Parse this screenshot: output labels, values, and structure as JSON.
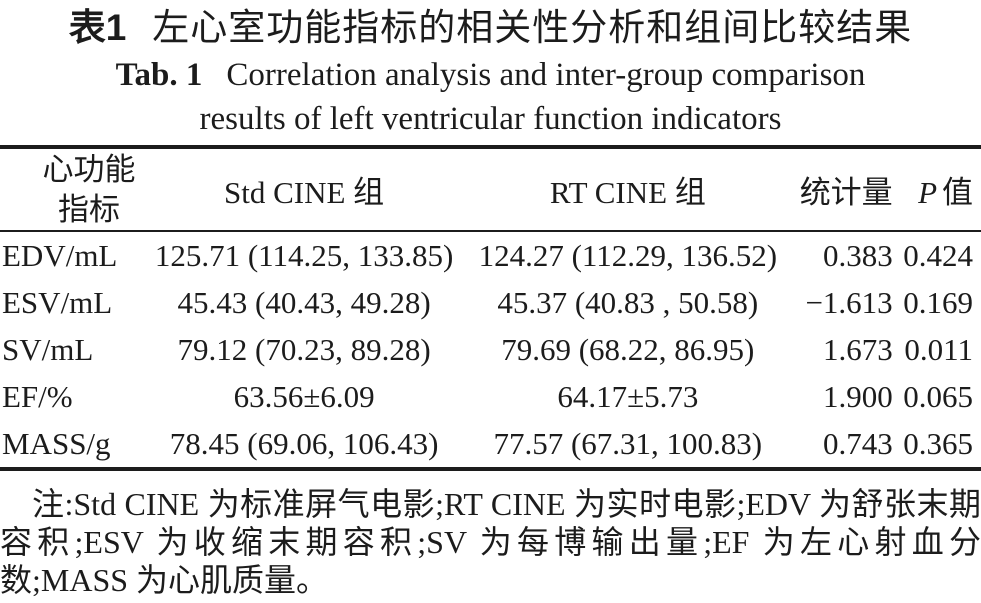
{
  "title": {
    "zh_label": "表1",
    "zh_text": "左心室功能指标的相关性分析和组间比较结果",
    "en_label": "Tab. 1",
    "en_line1": "Correlation analysis and inter-group comparison",
    "en_line2": "results of left ventricular function indicators"
  },
  "table": {
    "headers": {
      "indicator_line1": "心功能",
      "indicator_line2": "指标",
      "std_cine": "Std CINE 组",
      "rt_cine": "RT CINE 组",
      "statistic": "统计量",
      "p_symbol": "P",
      "p_suffix": "值"
    },
    "rows": [
      {
        "indicator": "EDV/mL",
        "std_cine": "125.71 (114.25, 133.85)",
        "rt_cine": "124.27 (112.29, 136.52)",
        "statistic": "0.383",
        "p_value": "0.424"
      },
      {
        "indicator": "ESV/mL",
        "std_cine": "45.43 (40.43, 49.28)",
        "rt_cine": "45.37 (40.83 , 50.58)",
        "statistic": "−1.613",
        "p_value": "0.169"
      },
      {
        "indicator": "SV/mL",
        "std_cine": "79.12 (70.23, 89.28)",
        "rt_cine": "79.69 (68.22, 86.95)",
        "statistic": "1.673",
        "p_value": "0.011"
      },
      {
        "indicator": "EF/%",
        "std_cine": "63.56±6.09",
        "rt_cine": "64.17±5.73",
        "statistic": "1.900",
        "p_value": "0.065"
      },
      {
        "indicator": "MASS/g",
        "std_cine": "78.45 (69.06, 106.43)",
        "rt_cine": "77.57 (67.31, 100.83)",
        "statistic": "0.743",
        "p_value": "0.365"
      }
    ]
  },
  "footnote": "注:Std CINE 为标准屏气电影;RT CINE 为实时电影;EDV 为舒张末期容积;ESV 为收缩末期容积;SV 为每博输出量;EF 为左心射血分数;MASS 为心肌质量。",
  "colors": {
    "text": "#1c1c1c",
    "background": "#ffffff",
    "rule": "#1c1c1c"
  }
}
